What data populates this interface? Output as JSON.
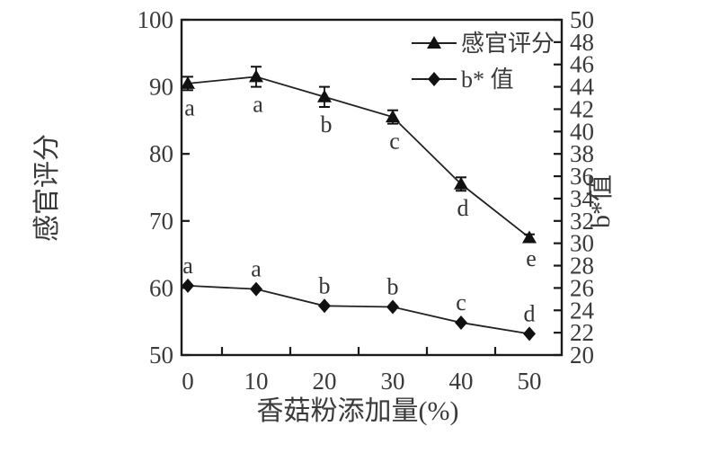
{
  "figure": {
    "background": "#ffffff",
    "line_color": "#1a1a1a",
    "text_color": "#3a3a3a",
    "marker_color": "#111111"
  },
  "chart_data": {
    "type": "line",
    "x": [
      0,
      10,
      20,
      30,
      40,
      50
    ],
    "xlabel": "香菇粉添加量(%)",
    "x_tick_labels": [
      "0",
      "10",
      "20",
      "30",
      "40",
      "50"
    ],
    "x_minor_ticks": [
      5,
      15,
      25,
      35,
      45
    ],
    "left_axis": {
      "label": "感官评分",
      "min": 50,
      "max": 100,
      "tick_step": 10,
      "ticks": [
        100,
        90,
        80,
        70,
        60,
        50
      ]
    },
    "right_axis": {
      "label": "b*值",
      "min": 20,
      "max": 50,
      "tick_step": 2,
      "ticks": [
        50,
        48,
        46,
        44,
        42,
        40,
        38,
        36,
        34,
        32,
        30,
        28,
        26,
        24,
        22,
        20
      ]
    },
    "series": [
      {
        "name": "感官评分",
        "axis": "left",
        "marker": "triangle",
        "values": [
          90.5,
          91.5,
          88.5,
          85.5,
          75.5,
          67.5
        ],
        "errors": [
          1.0,
          1.5,
          1.5,
          1.0,
          1.0,
          0.5
        ],
        "letters": [
          "a",
          "a",
          "b",
          "c",
          "d",
          "e"
        ],
        "letter_pos": "below"
      },
      {
        "name": "b* 值",
        "axis": "right",
        "marker": "diamond",
        "values": [
          26.2,
          25.9,
          24.4,
          24.3,
          22.9,
          21.9
        ],
        "errors": [
          0,
          0,
          0,
          0,
          0,
          0
        ],
        "letters": [
          "a",
          "a",
          "b",
          "b",
          "c",
          "d"
        ],
        "letter_pos": "above"
      }
    ],
    "legend": {
      "position": "top-right-inside",
      "border": false,
      "entries": [
        "感官评分",
        "b* 值"
      ]
    },
    "grid": false
  }
}
